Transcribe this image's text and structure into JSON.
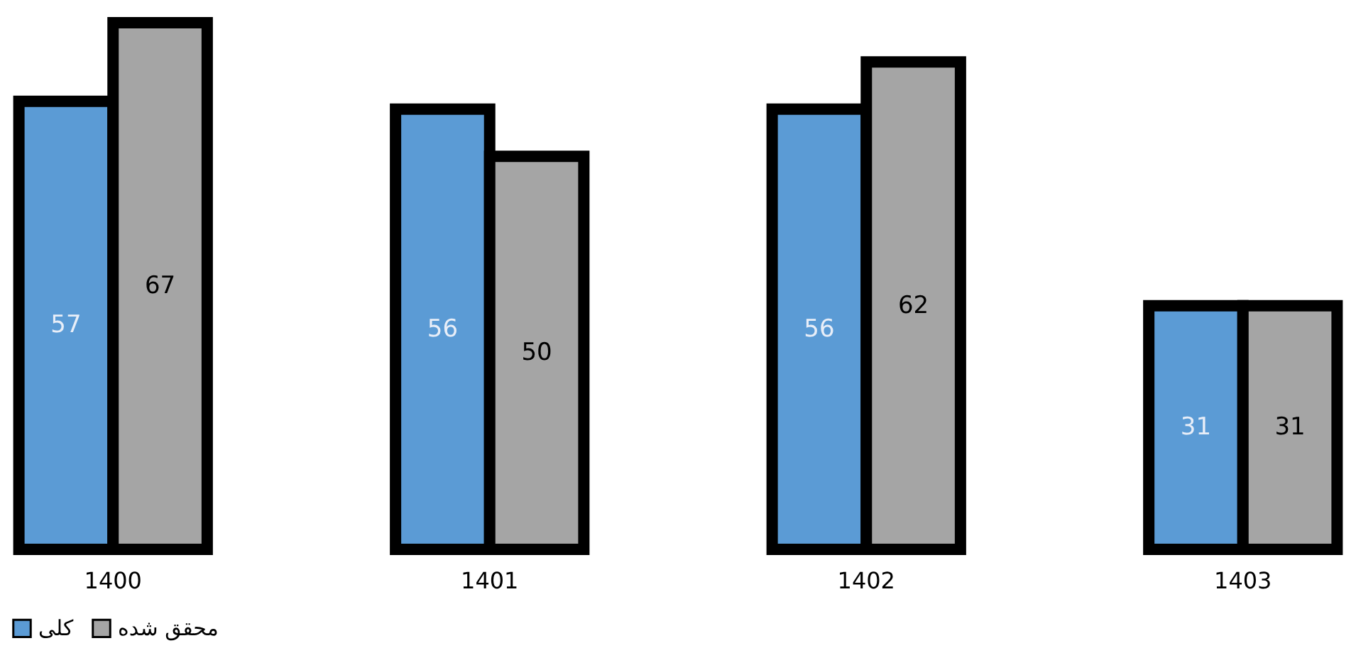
{
  "chart_data": {
    "type": "bar",
    "categories": [
      "1400",
      "1401",
      "1402",
      "1403"
    ],
    "series": [
      {
        "name": "کلی",
        "color": "#5b9bd5",
        "values": [
          57,
          56,
          56,
          31
        ]
      },
      {
        "name": "محقق شده",
        "color": "#a5a5a5",
        "values": [
          67,
          50,
          62,
          31
        ]
      }
    ],
    "data_labels": true,
    "legend": "bottom",
    "grid": false
  }
}
